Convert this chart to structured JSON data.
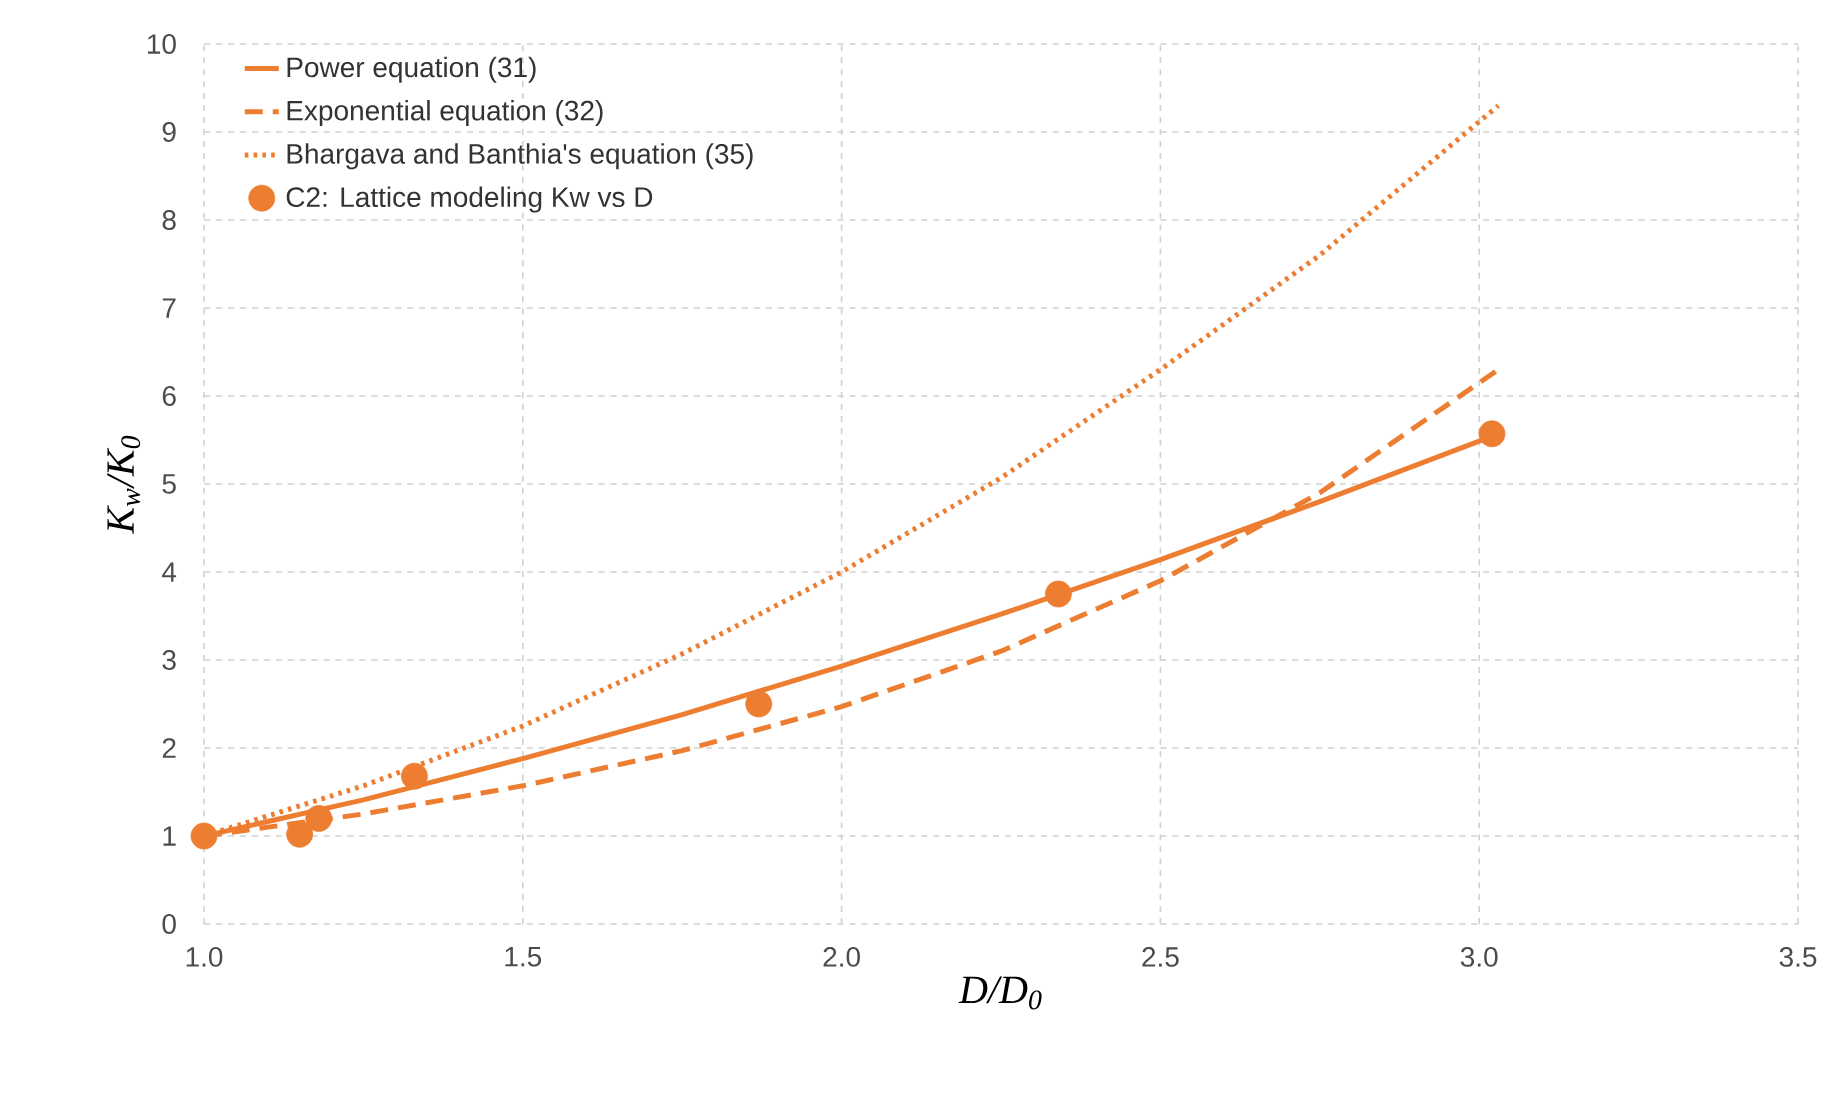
{
  "chart_data": {
    "type": "line",
    "xlabel": "D/D$_{0}$",
    "ylabel": "K$_{w}$/K$_{0}$",
    "xlim": [
      1.0,
      3.5
    ],
    "ylim": [
      0,
      10
    ],
    "xticks": [
      {
        "value": 1.0,
        "label": "1.0"
      },
      {
        "value": 1.5,
        "label": "1.5"
      },
      {
        "value": 2.0,
        "label": "2.0"
      },
      {
        "value": 2.5,
        "label": "2.5"
      },
      {
        "value": 3.0,
        "label": "3.0"
      },
      {
        "value": 3.5,
        "label": "3.5"
      }
    ],
    "yticks": [
      0,
      1,
      2,
      3,
      4,
      5,
      6,
      7,
      8,
      9,
      10
    ],
    "grid": true,
    "legend": "top left",
    "series": [
      {
        "name": "Power equation (31)",
        "line_style": "solid",
        "marker": "none",
        "color": "#ed7d31",
        "x": [
          1.0,
          1.25,
          1.5,
          1.75,
          2.0,
          2.25,
          2.5,
          2.75,
          3.03
        ],
        "values": [
          1.0,
          1.41,
          1.88,
          2.38,
          2.93,
          3.52,
          4.14,
          4.8,
          5.57
        ]
      },
      {
        "name": "Exponential equation (32)",
        "type": "line",
        "line_style": "dashed",
        "marker": "none",
        "color": "#ed7d31",
        "x": [
          1.0,
          1.25,
          1.5,
          1.75,
          2.0,
          2.25,
          2.5,
          2.75,
          3.03
        ],
        "values": [
          1.0,
          1.25,
          1.57,
          1.97,
          2.47,
          3.1,
          3.9,
          4.9,
          6.3
        ]
      },
      {
        "name": "Bhargava and Banthia's equation (35)",
        "type": "line",
        "line_style": "dotted",
        "marker": "none",
        "color": "#ed7d31",
        "x": [
          1.0,
          1.25,
          1.5,
          1.75,
          2.0,
          2.25,
          2.5,
          2.75,
          3.03
        ],
        "values": [
          1.0,
          1.57,
          2.25,
          3.07,
          4.0,
          5.07,
          6.3,
          7.6,
          9.3
        ]
      },
      {
        "name": "C2: Lattice modeling Kw vs D",
        "type": "scatter",
        "marker": "circle",
        "color": "#ed7d31",
        "x": [
          1.0,
          1.15,
          1.18,
          1.33,
          1.87,
          2.34,
          3.02
        ],
        "values": [
          1.0,
          1.02,
          1.2,
          1.68,
          2.5,
          3.75,
          5.57
        ]
      }
    ]
  }
}
